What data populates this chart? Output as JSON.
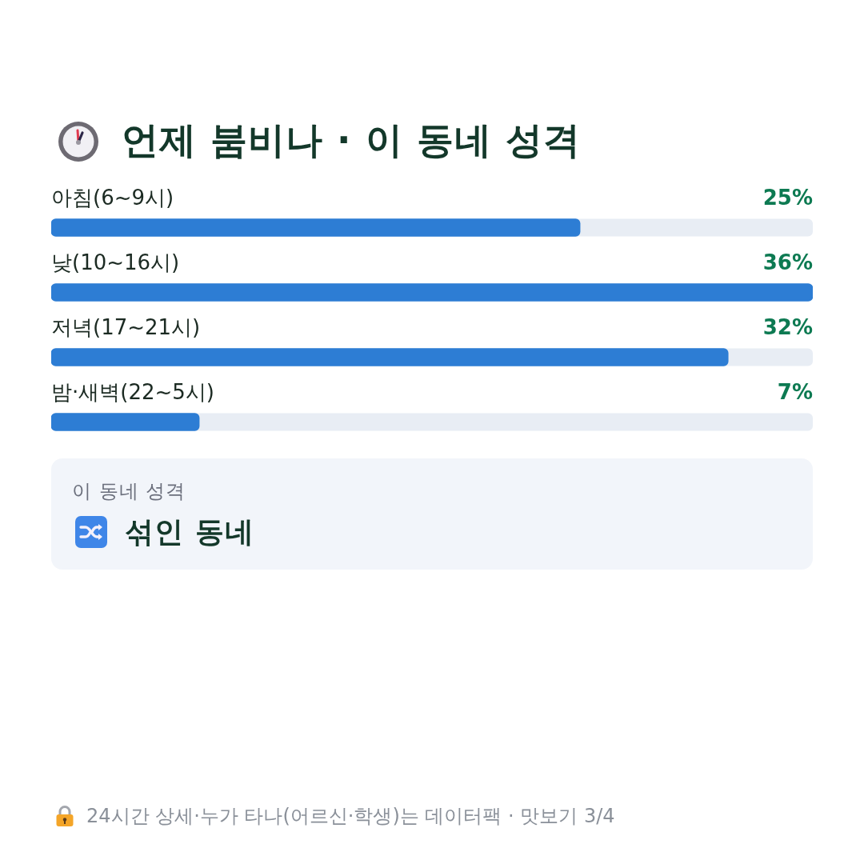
{
  "chart_data": {
    "type": "bar",
    "orientation": "horizontal",
    "title": "언제 붐비나 · 이 동네 성격",
    "categories": [
      "아침(6~9시)",
      "낮(10~16시)",
      "저녁(17~21시)",
      "밤·새벽(22~5시)"
    ],
    "values": [
      25,
      36,
      32,
      7
    ],
    "color": "#2d7dd4",
    "value_labels": [
      "25%",
      "36%",
      "32%",
      "7%"
    ],
    "annotations": [
      "이 동네 성격",
      "섞인 동네",
      "24시간 상세·누가 타나(어르신·학생)는 데이터팩 · 맛보기 3/4"
    ]
  }
}
